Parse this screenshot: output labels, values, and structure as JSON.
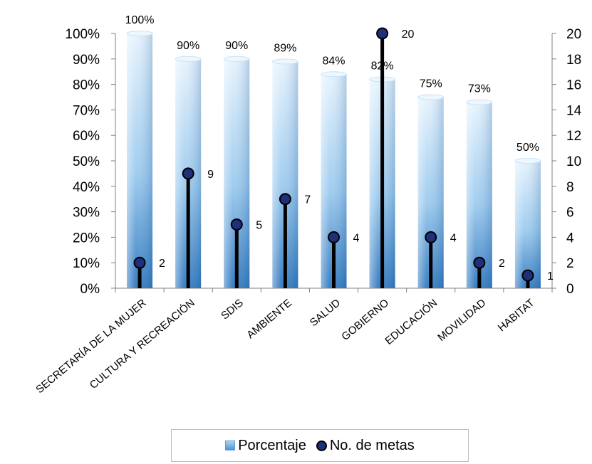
{
  "chart_data": {
    "type": "bar",
    "categories": [
      "SECRETARÍA DE LA MUJER",
      "CULTURA Y RECREACIÓN",
      "SDIS",
      "AMBIENTE",
      "SALUD",
      "GOBIERNO",
      "EDUCACIÓN",
      "MOVILIDAD",
      "HABITAT"
    ],
    "series": [
      {
        "name": "Porcentaje",
        "type": "bar",
        "axis": "left",
        "values": [
          100,
          90,
          90,
          89,
          84,
          82,
          75,
          73,
          50
        ],
        "labels": [
          "100%",
          "90%",
          "90%",
          "89%",
          "84%",
          "82%",
          "75%",
          "73%",
          "50%"
        ]
      },
      {
        "name": "No. de metas",
        "type": "lollipop",
        "axis": "right",
        "values": [
          2,
          9,
          5,
          7,
          4,
          20,
          4,
          2,
          1
        ],
        "labels": [
          "2",
          "9",
          "5",
          "7",
          "4",
          "20",
          "4",
          "2",
          "1"
        ]
      }
    ],
    "y_left": {
      "ylim": [
        0,
        100
      ],
      "ticks": [
        "0%",
        "10%",
        "20%",
        "30%",
        "40%",
        "50%",
        "60%",
        "70%",
        "80%",
        "90%",
        "100%"
      ]
    },
    "y_right": {
      "ylim": [
        0,
        20
      ],
      "ticks": [
        "0",
        "2",
        "4",
        "6",
        "8",
        "10",
        "12",
        "14",
        "16",
        "18",
        "20"
      ]
    },
    "title": "",
    "xlabel": "",
    "ylabel": "",
    "grid": false,
    "legend_position": "bottom",
    "colors": {
      "bar_light": "#e4f2fc",
      "bar_dark": "#2f78bf",
      "marker_fill": "#1f2f7a",
      "marker_stroke": "#000000",
      "stem": "#000000"
    }
  }
}
